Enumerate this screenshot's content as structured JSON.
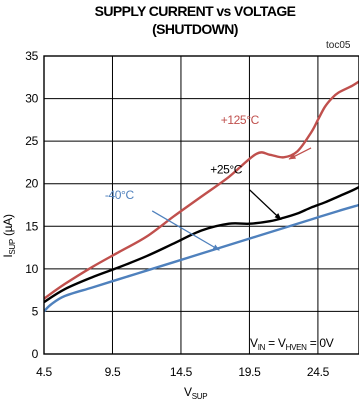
{
  "chart_data": {
    "type": "line",
    "title": "SUPPLY CURRENT vs VOLTAGE",
    "subtitle": "(SHUTDOWN)",
    "tag": "toc05",
    "xlabel": {
      "main": "V",
      "sub": "SUP"
    },
    "ylabel": {
      "main": "I",
      "sub": "SUP",
      "unit": " (µA)"
    },
    "xlim": [
      4.5,
      27.5
    ],
    "ylim": [
      0,
      35
    ],
    "xticks": [
      4.5,
      9.5,
      14.5,
      19.5,
      24.5
    ],
    "xtick_labels": [
      "4.5",
      "9.5",
      "14.5",
      "19.5",
      "24.5"
    ],
    "yticks": [
      0,
      5,
      10,
      15,
      20,
      25,
      30,
      35
    ],
    "ytick_labels": [
      "0",
      "5",
      "10",
      "15",
      "20",
      "25",
      "30",
      "35"
    ],
    "grid": true,
    "condition": {
      "a": "V",
      "a_sub": "IN",
      "eq1": " = ",
      "b": "V",
      "b_sub": "HVEN",
      "eq2": " = 0V"
    },
    "series": [
      {
        "name": "+125°C",
        "color": "#c0504d",
        "x": [
          4.5,
          6,
          8,
          10,
          12,
          14,
          16,
          18,
          20,
          21,
          22,
          23,
          24,
          24.5,
          25,
          25.5,
          26,
          27,
          27.5
        ],
        "y": [
          6.5,
          8.2,
          10.2,
          12,
          13.8,
          16.2,
          18.5,
          20.8,
          23.5,
          23.4,
          23.1,
          23.8,
          26,
          27.5,
          29,
          30,
          30.7,
          31.5,
          32
        ]
      },
      {
        "name": "+25°C",
        "color": "#000000",
        "x": [
          4.5,
          6,
          8,
          10,
          12,
          14,
          16,
          18,
          19.5,
          21,
          22,
          23,
          24,
          25,
          26,
          27,
          27.5
        ],
        "y": [
          6.1,
          7.6,
          9,
          10.2,
          11.5,
          13,
          14.5,
          15.3,
          15.3,
          15.6,
          16,
          16.5,
          17.2,
          17.8,
          18.5,
          19.2,
          19.6
        ]
      },
      {
        "name": "-40°C",
        "color": "#4f81bd",
        "x": [
          4.5,
          5,
          6,
          8,
          10,
          12,
          14,
          16,
          18,
          20,
          22,
          24,
          26,
          27.5
        ],
        "y": [
          5,
          5.8,
          6.8,
          7.8,
          8.8,
          9.8,
          10.8,
          11.8,
          12.8,
          13.8,
          14.8,
          15.8,
          16.8,
          17.5
        ]
      }
    ],
    "annotations": [
      {
        "text": "+125°C",
        "color": "#c0504d",
        "text_x": 18.8,
        "text_y": 27.0,
        "arrow_from": [
          24.0,
          24.2
        ],
        "arrow_to": [
          22.4,
          22.9
        ]
      },
      {
        "text": "+25°C",
        "color": "#000000",
        "text_x": 17.8,
        "text_y": 21.2,
        "arrow_from": [
          19.5,
          19.3
        ],
        "arrow_to": [
          21.8,
          15.8
        ]
      },
      {
        "text": "-40°C",
        "color": "#4f81bd",
        "text_x": 10.0,
        "text_y": 18.2,
        "arrow_from": [
          12.4,
          16.8
        ],
        "arrow_to": [
          17.3,
          12.2
        ]
      }
    ]
  }
}
